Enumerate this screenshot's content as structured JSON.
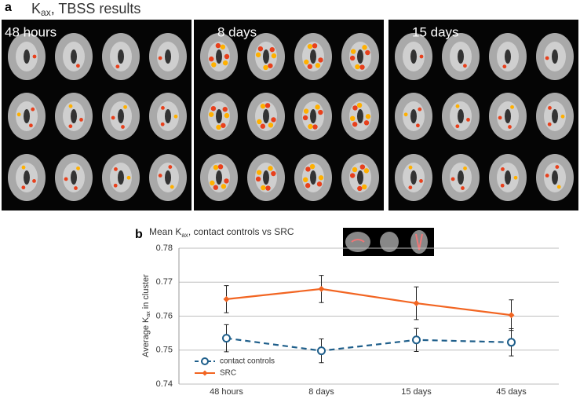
{
  "panel_a": {
    "label": "a",
    "title": {
      "main": "K",
      "sub": "ax",
      "rest": ", TBSS results"
    },
    "panels": [
      "48 hours",
      "8 days",
      "15 days"
    ]
  },
  "chart_data": {
    "type": "line",
    "label": "b",
    "title": {
      "main": "Mean K",
      "sub": "ax",
      "rest": ", contact controls vs SRC"
    },
    "y_label": {
      "main": "Average K",
      "sub": "ax",
      "rest": " in cluster"
    },
    "categories": [
      "48 hours",
      "8 days",
      "15 days",
      "45 days"
    ],
    "series": [
      {
        "name": "contact controls",
        "color": "#1f5f8b",
        "dashed": true,
        "marker": "circle",
        "values": [
          0.7535,
          0.7498,
          0.753,
          0.7523
        ],
        "errors": [
          0.004,
          0.0035,
          0.0034,
          0.004
        ]
      },
      {
        "name": "SRC",
        "color": "#f26522",
        "dashed": false,
        "marker": "diamond",
        "values": [
          0.765,
          0.768,
          0.7638,
          0.7603
        ],
        "errors": [
          0.004,
          0.004,
          0.0048,
          0.0045
        ]
      }
    ],
    "ylim": [
      0.74,
      0.78
    ],
    "yticks": [
      0.74,
      0.75,
      0.76,
      0.77,
      0.78
    ],
    "grid": true
  }
}
